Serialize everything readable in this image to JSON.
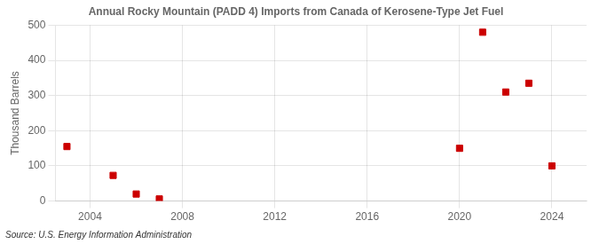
{
  "chart_data": {
    "type": "scatter",
    "title": "Annual Rocky Mountain (PADD 4) Imports from Canada of Kerosene-Type Jet Fuel",
    "ylabel": "Thousand Barrels",
    "source": "Source: U.S. Energy Information Administration",
    "x": [
      2003,
      2005,
      2006,
      2007,
      2020,
      2021,
      2022,
      2023,
      2024
    ],
    "values": [
      155,
      73,
      20,
      6,
      150,
      480,
      310,
      335,
      100
    ],
    "color": "#cc0000",
    "marker": "square",
    "xlim": [
      2002.5,
      2025.5
    ],
    "xticks": [
      2004,
      2008,
      2012,
      2016,
      2020,
      2024
    ],
    "ylim": [
      0,
      500
    ],
    "yticks": [
      0,
      100,
      200,
      300,
      400,
      500
    ],
    "grid": true
  }
}
